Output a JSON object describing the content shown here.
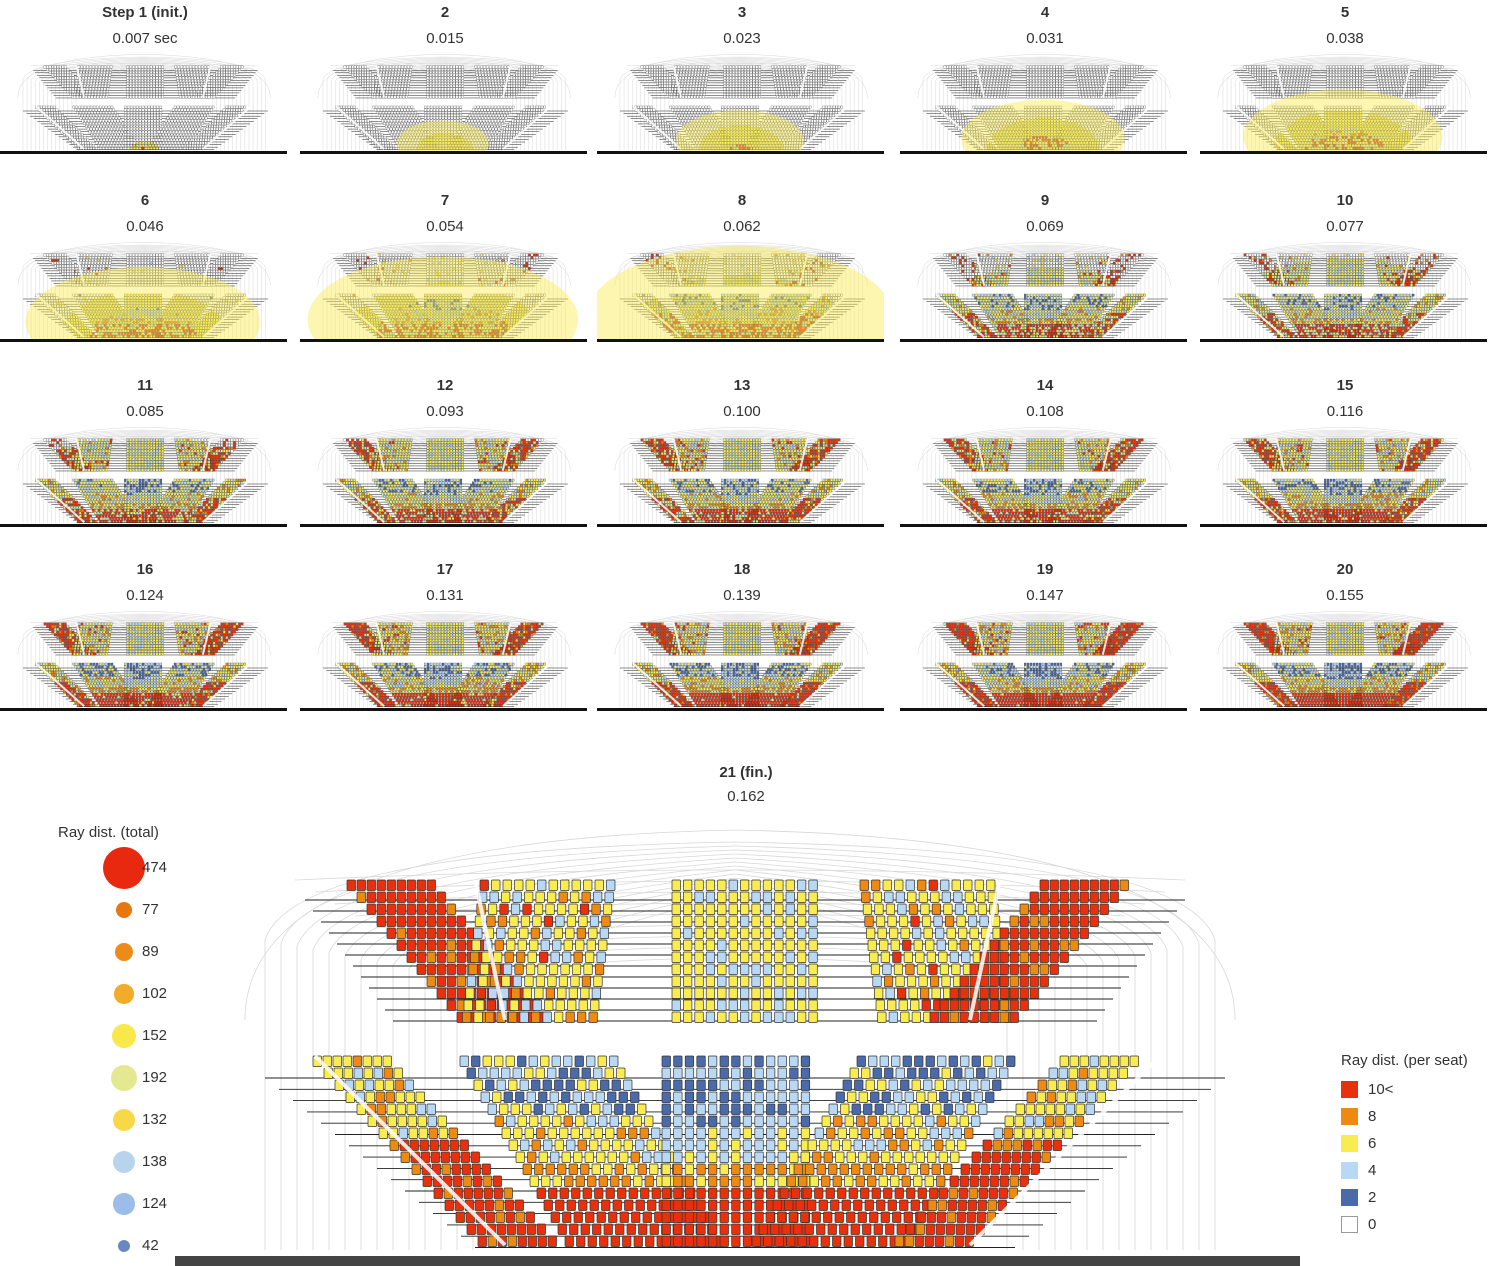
{
  "steps": [
    {
      "title": "Step 1 (init.)",
      "time": "0.007 sec",
      "stage": 1
    },
    {
      "title": "2",
      "time": "0.015",
      "stage": 2
    },
    {
      "title": "3",
      "time": "0.023",
      "stage": 3
    },
    {
      "title": "4",
      "time": "0.031",
      "stage": 4
    },
    {
      "title": "5",
      "time": "0.038",
      "stage": 5
    },
    {
      "title": "6",
      "time": "0.046",
      "stage": 6
    },
    {
      "title": "7",
      "time": "0.054",
      "stage": 7
    },
    {
      "title": "8",
      "time": "0.062",
      "stage": 8
    },
    {
      "title": "9",
      "time": "0.069",
      "stage": 9
    },
    {
      "title": "10",
      "time": "0.077",
      "stage": 10
    },
    {
      "title": "11",
      "time": "0.085",
      "stage": 11
    },
    {
      "title": "12",
      "time": "0.093",
      "stage": 12
    },
    {
      "title": "13",
      "time": "0.100",
      "stage": 13
    },
    {
      "title": "14",
      "time": "0.108",
      "stage": 14
    },
    {
      "title": "15",
      "time": "0.116",
      "stage": 15
    },
    {
      "title": "16",
      "time": "0.124",
      "stage": 16
    },
    {
      "title": "17",
      "time": "0.131",
      "stage": 17
    },
    {
      "title": "18",
      "time": "0.139",
      "stage": 18
    },
    {
      "title": "19",
      "time": "0.147",
      "stage": 19
    },
    {
      "title": "20",
      "time": "0.155",
      "stage": 20
    }
  ],
  "final": {
    "title": "21 (fin.)",
    "time": "0.162"
  },
  "legend_total": {
    "title": "Ray dist. (total)",
    "items": [
      {
        "label": "474",
        "value": 474,
        "color": "#e8280f"
      },
      {
        "label": "77",
        "value": 77,
        "color": "#e8760f"
      },
      {
        "label": "89",
        "value": 89,
        "color": "#ec8a1a"
      },
      {
        "label": "102",
        "value": 102,
        "color": "#f0ac2a"
      },
      {
        "label": "152",
        "value": 152,
        "color": "#f8e84a"
      },
      {
        "label": "192",
        "value": 192,
        "color": "#e4e890"
      },
      {
        "label": "132",
        "value": 132,
        "color": "#f8d848"
      },
      {
        "label": "138",
        "value": 138,
        "color": "#b8d4ec"
      },
      {
        "label": "124",
        "value": 124,
        "color": "#9cbcea"
      },
      {
        "label": "42",
        "value": 42,
        "color": "#6a88c0"
      }
    ]
  },
  "legend_seat": {
    "title": "Ray dist. (per seat)",
    "items": [
      {
        "label": "10<",
        "color": "#e8300f"
      },
      {
        "label": "8",
        "color": "#ec8a12"
      },
      {
        "label": "6",
        "color": "#f8ec50"
      },
      {
        "label": "4",
        "color": "#b8d8f4"
      },
      {
        "label": "2",
        "color": "#4a6aaa"
      },
      {
        "label": "0",
        "color": "#ffffff"
      }
    ]
  }
}
